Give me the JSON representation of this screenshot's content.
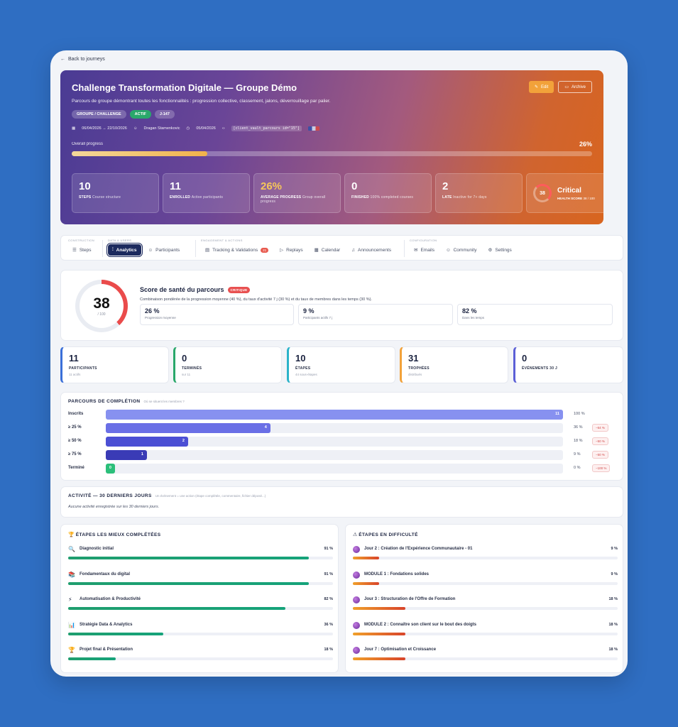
{
  "nav": {
    "back_label": "Back to journeys"
  },
  "hero": {
    "title": "Challenge Transformation Digitale — Groupe Démo",
    "description": "Parcours de groupe démontrant toutes les fonctionnalités : progression collective, classement, jalons, déverrouillage par palier.",
    "edit_label": "Edit",
    "archive_label": "Archive",
    "tags": [
      "GROUPE / CHALLENGE",
      "ACTIF",
      "J-147"
    ],
    "dates": "06/04/2026 → 22/10/2026",
    "author": "Dragan Stamenkovic",
    "created": "05/04/2026",
    "shortcode": "[client_vault_parcours id=\"15\"]",
    "progress_label": "Overall progress",
    "progress_text": "26%",
    "progress_value": 0.26,
    "accent_gold": "#f6c65a"
  },
  "stats": [
    {
      "num": "10",
      "label": "STEPS",
      "sub": "Course structure"
    },
    {
      "num": "11",
      "label": "ENROLLED",
      "sub": "Active participants"
    },
    {
      "num": "26%",
      "label": "AVERAGE PROGRESS",
      "sub": "Group overall progress"
    },
    {
      "num": "0",
      "label": "FINISHED",
      "sub": "100% completed courses"
    },
    {
      "num": "2",
      "label": "LATE",
      "sub": "Inactive for 7+ days"
    }
  ],
  "health_card": {
    "score": "38",
    "status": "Critical",
    "label": "HEALTH SCORE",
    "value": "38 / 100"
  },
  "tabs": {
    "groups": [
      {
        "label": "CONSTRUCTION",
        "items": [
          {
            "label": "Steps",
            "icon": "list-icon"
          }
        ]
      },
      {
        "label": "DATA & USERS",
        "items": [
          {
            "label": "Analytics",
            "icon": "chart-icon",
            "active": true
          },
          {
            "label": "Participants",
            "icon": "users-icon"
          }
        ]
      },
      {
        "label": "ENGAGEMENT & ACTIONS",
        "items": [
          {
            "label": "Tracking & Validations",
            "icon": "doc-icon",
            "badge": "21"
          },
          {
            "label": "Replays",
            "icon": "play-icon"
          },
          {
            "label": "Calendar",
            "icon": "calendar-icon"
          },
          {
            "label": "Announcements",
            "icon": "bell-icon"
          }
        ]
      },
      {
        "label": "CONFIGURATION",
        "items": [
          {
            "label": "Emails",
            "icon": "mail-icon"
          },
          {
            "label": "Community",
            "icon": "users-icon"
          },
          {
            "label": "Settings",
            "icon": "gear-icon"
          }
        ]
      }
    ]
  },
  "health": {
    "score": "38",
    "denominator": "/ 100",
    "score_value": 38,
    "title": "Score de santé du parcours",
    "badge": "CRITIQUE",
    "description": "Combinaison pondérée de la progression moyenne (40 %), du taux d'activité 7 j (30 %) et du taux de membres dans les temps (30 %).",
    "metrics": [
      {
        "value": "26 %",
        "label": "Progression moyenne"
      },
      {
        "value": "9 %",
        "label": "Participants actifs 7 j"
      },
      {
        "value": "82 %",
        "label": "Dans les temps"
      }
    ]
  },
  "kpis": [
    {
      "value": "11",
      "label": "PARTICIPANTS",
      "sub": "11 actifs",
      "color": "#3a6fd8"
    },
    {
      "value": "0",
      "label": "TERMINÉS",
      "sub": "sur 11",
      "color": "#2aa86b"
    },
    {
      "value": "10",
      "label": "ÉTAPES",
      "sub": "44 sous-étapes",
      "color": "#2bb3c9"
    },
    {
      "value": "31",
      "label": "TROPHÉES",
      "sub": "distribués",
      "color": "#f2a23a"
    },
    {
      "value": "0",
      "label": "ÉVÉNEMENTS 30 J",
      "sub": "",
      "color": "#5b5fd6"
    }
  ],
  "funnel": {
    "title": "PARCOURS DE COMPLÉTION",
    "subtitle": "Où se situent les membres ?",
    "rows": [
      {
        "label": "Inscrits",
        "count": "11",
        "pct": "100 %",
        "drop": "",
        "frac": 1.0,
        "color": "#8791f0"
      },
      {
        "label": "≥ 25 %",
        "count": "4",
        "pct": "36 %",
        "drop": "−64 %",
        "frac": 0.36,
        "color": "#6a6fe6"
      },
      {
        "label": "≥ 50 %",
        "count": "2",
        "pct": "18 %",
        "drop": "−50 %",
        "frac": 0.18,
        "color": "#4b4fd4"
      },
      {
        "label": "≥ 75 %",
        "count": "1",
        "pct": "9 %",
        "drop": "−50 %",
        "frac": 0.09,
        "color": "#3a3bb6"
      },
      {
        "label": "Terminé",
        "count": "0",
        "pct": "0 %",
        "drop": "−100 %",
        "frac": 0.0,
        "color": "#2bbf7a"
      }
    ]
  },
  "activity": {
    "title": "ACTIVITÉ — 30 DERNIERS JOURS",
    "subtitle": "Un événement = une action (étape complétée, commentaire, fichier déposé...)",
    "empty": "Aucune activité enregistrée sur les 30 derniers jours."
  },
  "best_steps": {
    "title": "ÉTAPES LES MIEUX COMPLÉTÉES",
    "items": [
      {
        "icon": "🔍",
        "name": "Diagnostic initial",
        "pct": "91 %",
        "frac": 0.91
      },
      {
        "icon": "📚",
        "name": "Fondamentaux du digital",
        "pct": "91 %",
        "frac": 0.91
      },
      {
        "icon": "⚡",
        "name": "Automatisation & Productivité",
        "pct": "82 %",
        "frac": 0.82
      },
      {
        "icon": "📊",
        "name": "Stratégie Data & Analytics",
        "pct": "36 %",
        "frac": 0.36
      },
      {
        "icon": "🏆",
        "name": "Projet final & Présentation",
        "pct": "18 %",
        "frac": 0.18
      }
    ]
  },
  "hard_steps": {
    "title": "ÉTAPES EN DIFFICULTÉ",
    "items": [
      {
        "name": "Jour 2 : Création de l'Expérience Communautaire - 01",
        "pct": "9 %",
        "frac": 0.09
      },
      {
        "name": "MODULE 1 : Fondations solides",
        "pct": "9 %",
        "frac": 0.09
      },
      {
        "name": "Jour 3 : Structuration de l'Offre de Formation",
        "pct": "18 %",
        "frac": 0.18
      },
      {
        "name": "MODULE 2 : Connaître son client sur le bout des doigts",
        "pct": "18 %",
        "frac": 0.18
      },
      {
        "name": "Jour 7 : Optimisation et Croissance",
        "pct": "18 %",
        "frac": 0.18
      }
    ]
  }
}
